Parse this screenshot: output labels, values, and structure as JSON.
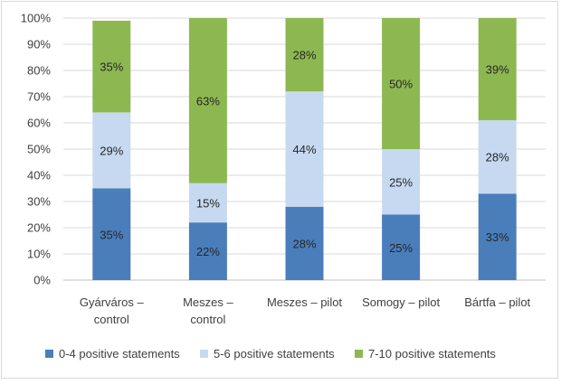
{
  "chart_data": {
    "type": "bar",
    "stacked": true,
    "percent_stacked": true,
    "categories": [
      [
        "Gyárváros –",
        "control"
      ],
      [
        "Meszes –",
        "control"
      ],
      [
        "Meszes – pilot"
      ],
      [
        "Somogy – pilot"
      ],
      [
        "Bártfa – pilot"
      ]
    ],
    "series": [
      {
        "name": "0-4 positive statements",
        "color": "#4a7ebb",
        "values": [
          35,
          22,
          28,
          25,
          33
        ],
        "labels": [
          "35%",
          "22%",
          "28%",
          "25%",
          "33%"
        ]
      },
      {
        "name": "5-6 positive statements",
        "color": "#c6d9f1",
        "values": [
          29,
          15,
          44,
          25,
          28
        ],
        "labels": [
          "29%",
          "15%",
          "44%",
          "25%",
          "28%"
        ]
      },
      {
        "name": "7-10 positive statements",
        "color": "#8db851",
        "values": [
          35,
          63,
          28,
          50,
          39
        ],
        "labels": [
          "35%",
          "63%",
          "28%",
          "50%",
          "39%"
        ]
      }
    ],
    "ylim": [
      0,
      100
    ],
    "yticks": [
      "0%",
      "10%",
      "20%",
      "30%",
      "40%",
      "50%",
      "60%",
      "70%",
      "80%",
      "90%",
      "100%"
    ],
    "grid": true,
    "legend_position": "bottom"
  }
}
